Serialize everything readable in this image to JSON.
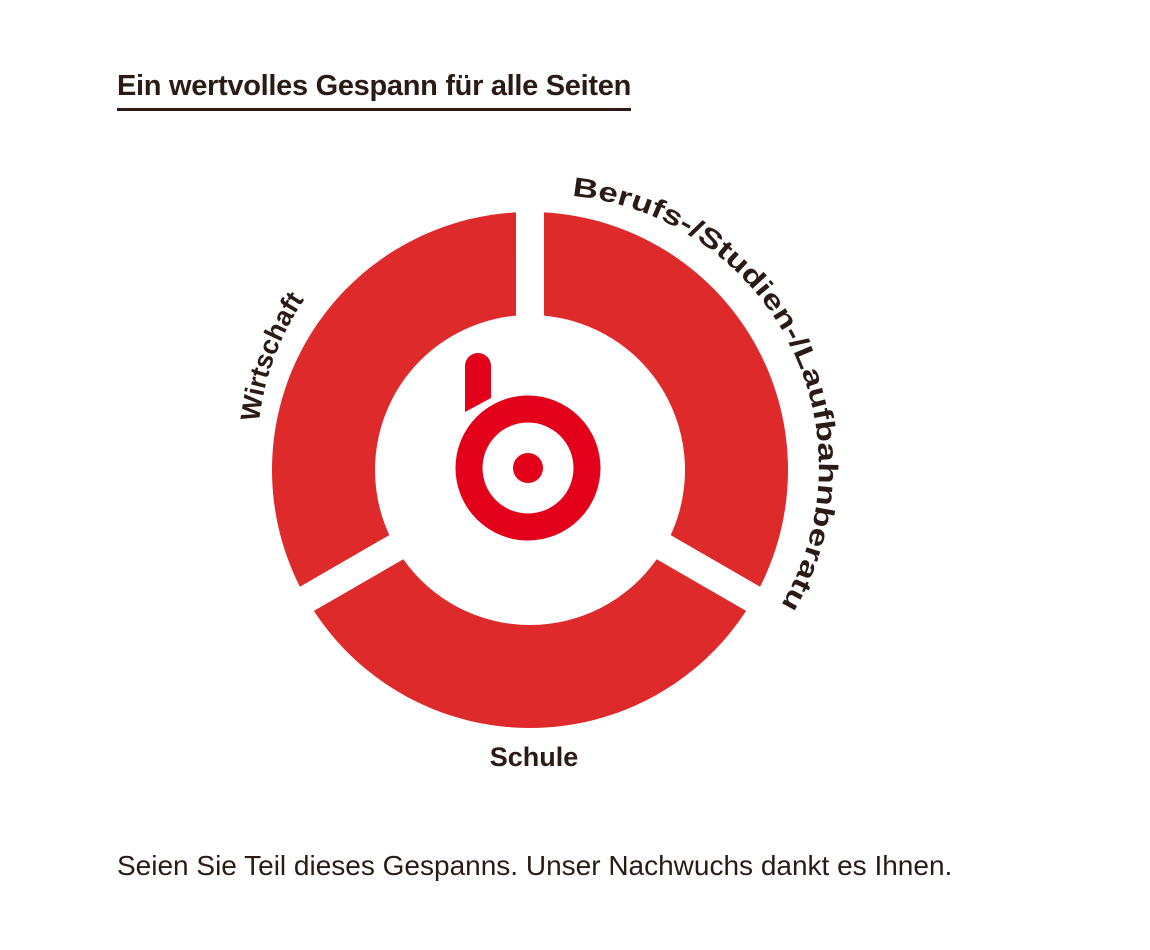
{
  "title": "Ein wertvolles Gespann für alle Seiten",
  "diagram": {
    "segments": [
      {
        "id": "wirtschaft",
        "label": "Wirtschaft"
      },
      {
        "id": "beratung",
        "label": "Berufs-/Studien-/Laufbahnberatung"
      },
      {
        "id": "schule",
        "label": "Schule"
      }
    ],
    "colors": {
      "ring": "#de2a2a",
      "logo": "#e3001b",
      "text": "#2b1b14"
    },
    "center_logo": "b-logo-icon"
  },
  "footer": "Seien Sie Teil dieses Gespanns. Unser Nachwuchs dankt es Ihnen."
}
